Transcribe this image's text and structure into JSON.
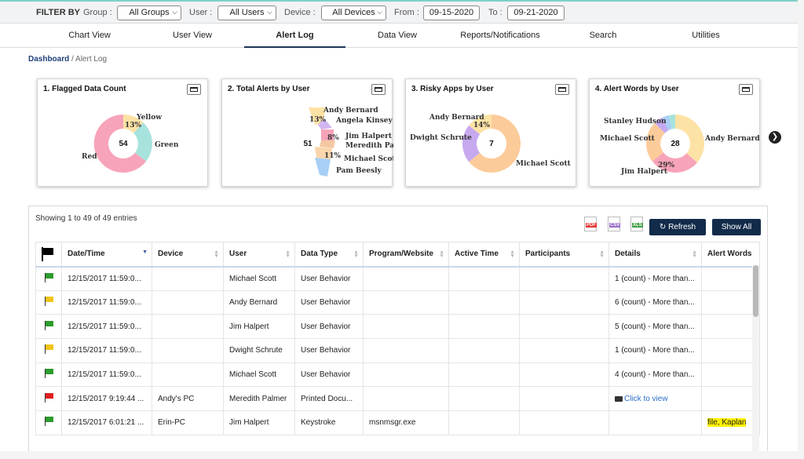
{
  "filters": {
    "filter_by": "FILTER BY",
    "group_label": "Group :",
    "group_value": "All Groups",
    "user_label": "User :",
    "user_value": "All Users",
    "device_label": "Device :",
    "device_value": "All Devices",
    "from_label": "From :",
    "from_value": "09-15-2020",
    "to_label": "To :",
    "to_value": "09-21-2020"
  },
  "nav": {
    "tabs": [
      "Chart View",
      "User View",
      "Alert Log",
      "Data View",
      "Reports/Notifications",
      "Search",
      "Utilities"
    ],
    "active": "Alert Log"
  },
  "breadcrumb": {
    "root": "Dashboard",
    "separator": " / ",
    "current": "Alert Log"
  },
  "cards": [
    {
      "title": "1. Flagged Data Count",
      "center": "54",
      "slices": [
        {
          "label": "Yellow",
          "percent": 13,
          "color": "#fde2a6"
        },
        {
          "label": "Green",
          "percent": 25,
          "color": "#a7e3dc"
        },
        {
          "label": "Red",
          "percent": 62,
          "color": "#f7a3b9"
        }
      ],
      "percent_label": "13%"
    },
    {
      "title": "2. Total Alerts by User",
      "center": "51",
      "labels": [
        "Andy Bernard",
        "Angela Kinsey",
        "Jim Halpert",
        "Meredith Palm",
        "Michael Scott",
        "Pam Beesly"
      ],
      "percents": [
        "13%",
        "8%",
        "11%"
      ]
    },
    {
      "title": "3. Risky Apps by User",
      "center": "7",
      "labels": [
        "Andy Bernard",
        "Dwight Schrute",
        "Michael Scott"
      ],
      "percents": [
        "14%"
      ]
    },
    {
      "title": "4. Alert Words by User",
      "center": "28",
      "labels": [
        "Stanley Hudson",
        "Michael Scott",
        "Jim Halpert",
        "Andy Bernard"
      ],
      "percents": [
        "29%"
      ]
    }
  ],
  "table_controls": {
    "showing": "Showing 1 to 49 of 49 entries",
    "export_pdf": "PDF",
    "export_csv": "CSV",
    "export_xls": "XLS",
    "refresh": "Refresh",
    "show_all": "Show All"
  },
  "table": {
    "columns": [
      "",
      "Date/Time",
      "Device",
      "User",
      "Data Type",
      "Program/Website",
      "Active Time",
      "Participants",
      "Details",
      "Alert Words"
    ],
    "rows": [
      {
        "flag": "green",
        "datetime": "12/15/2017 11:59:0...",
        "device": "",
        "user": "Michael Scott",
        "type": "User Behavior",
        "program": "",
        "active": "",
        "participants": "",
        "details": "1 (count) - More than...",
        "words": ""
      },
      {
        "flag": "yellow",
        "datetime": "12/15/2017 11:59:0...",
        "device": "",
        "user": "Andy Bernard",
        "type": "User Behavior",
        "program": "",
        "active": "",
        "participants": "",
        "details": "6 (count) - More than...",
        "words": ""
      },
      {
        "flag": "green",
        "datetime": "12/15/2017 11:59:0...",
        "device": "",
        "user": "Jim Halpert",
        "type": "User Behavior",
        "program": "",
        "active": "",
        "participants": "",
        "details": "5 (count) - More than...",
        "words": ""
      },
      {
        "flag": "yellow",
        "datetime": "12/15/2017 11:59:0...",
        "device": "",
        "user": "Dwight Schrute",
        "type": "User Behavior",
        "program": "",
        "active": "",
        "participants": "",
        "details": "1 (count) - More than...",
        "words": ""
      },
      {
        "flag": "green",
        "datetime": "12/15/2017 11:59:0...",
        "device": "",
        "user": "Michael Scott",
        "type": "User Behavior",
        "program": "",
        "active": "",
        "participants": "",
        "details": "4 (count) - More than...",
        "words": ""
      },
      {
        "flag": "red",
        "datetime": "12/15/2017 9:19:44 ...",
        "device": "Andy's PC",
        "user": "Meredith Palmer",
        "type": "Printed Docu...",
        "program": "",
        "active": "",
        "participants": "",
        "details": "Click to view",
        "details_link": true,
        "words": ""
      },
      {
        "flag": "green",
        "datetime": "12/15/2017 6:01:21 ...",
        "device": "Erin-PC",
        "user": "Jim Halpert",
        "type": "Keystroke",
        "program": "msnmsgr.exe",
        "active": "",
        "participants": "",
        "details": "",
        "words": "file, Kaplan"
      }
    ]
  }
}
